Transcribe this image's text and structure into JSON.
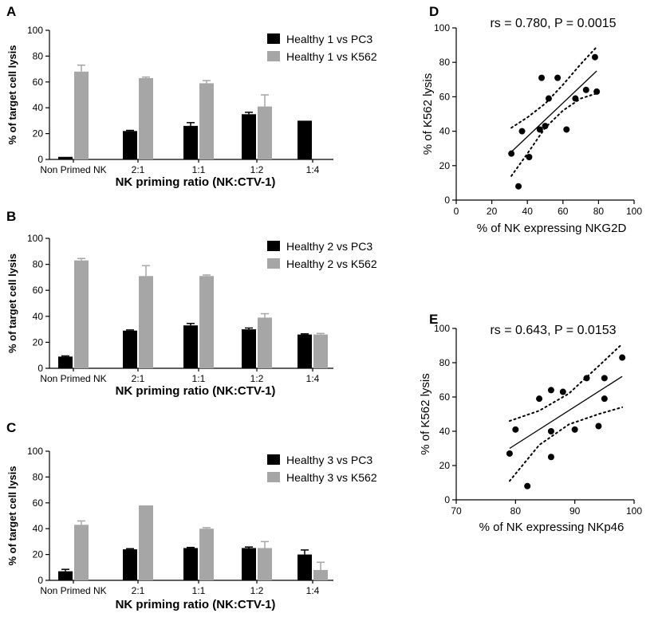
{
  "colors": {
    "series1": "#000000",
    "series2": "#a6a6a6",
    "axis": "#000000",
    "fit": "#000000"
  },
  "chart_data": [
    {
      "panel": "A",
      "type": "bar",
      "ylabel": "% of target cell lysis",
      "xlabel": "NK priming ratio (NK:CTV-1)",
      "ylim": [
        0,
        100
      ],
      "yticks": [
        0,
        20,
        40,
        60,
        80,
        100
      ],
      "categories": [
        "Non Primed NK",
        "2:1",
        "1:1",
        "1:2",
        "1:4"
      ],
      "series": [
        {
          "name": "Healthy 1 vs PC3",
          "values": [
            2,
            22,
            26,
            35,
            30
          ],
          "errors": [
            0,
            0.5,
            2.5,
            1.5,
            0
          ]
        },
        {
          "name": "Healthy 1 vs K562",
          "values": [
            68,
            63,
            59,
            41,
            null
          ],
          "errors": [
            5,
            0.8,
            2,
            9,
            0
          ]
        }
      ]
    },
    {
      "panel": "B",
      "type": "bar",
      "ylabel": "% of target cell lysis",
      "xlabel": "NK priming ratio (NK:CTV-1)",
      "ylim": [
        0,
        100
      ],
      "yticks": [
        0,
        20,
        40,
        60,
        80,
        100
      ],
      "categories": [
        "Non Primed NK",
        "2:1",
        "1:1",
        "1:2",
        "1:4"
      ],
      "series": [
        {
          "name": "Healthy 2 vs PC3",
          "values": [
            9,
            29,
            33,
            30,
            26
          ],
          "errors": [
            0.5,
            0.5,
            1.5,
            1,
            0.5
          ]
        },
        {
          "name": "Healthy 2 vs K562",
          "values": [
            83,
            71,
            71,
            39,
            26
          ],
          "errors": [
            1.5,
            8,
            0.8,
            3,
            0.8
          ]
        }
      ]
    },
    {
      "panel": "C",
      "type": "bar",
      "ylabel": "% of target cell lysis",
      "xlabel": "NK priming ratio (NK:CTV-1)",
      "ylim": [
        0,
        100
      ],
      "yticks": [
        0,
        20,
        40,
        60,
        80,
        100
      ],
      "categories": [
        "Non Primed NK",
        "2:1",
        "1:1",
        "1:2",
        "1:4"
      ],
      "series": [
        {
          "name": "Healthy 3 vs PC3",
          "values": [
            7,
            24,
            25,
            25,
            20
          ],
          "errors": [
            1.5,
            0.5,
            0.5,
            0.8,
            3.5
          ]
        },
        {
          "name": "Healthy 3 vs K562",
          "values": [
            43,
            58,
            40,
            25,
            8
          ],
          "errors": [
            3,
            0,
            0.8,
            5,
            6
          ]
        }
      ]
    },
    {
      "panel": "D",
      "type": "scatter",
      "xlabel": "% of NK expressing NKG2D",
      "ylabel": "% of K562 lysis",
      "annotation": "rs = 0.780, P = 0.0015",
      "xlim": [
        0,
        100
      ],
      "ylim": [
        0,
        100
      ],
      "xticks": [
        0,
        20,
        40,
        60,
        80,
        100
      ],
      "yticks": [
        0,
        20,
        40,
        60,
        80,
        100
      ],
      "x": [
        31,
        35,
        37,
        41,
        47,
        48,
        50,
        52,
        57,
        62,
        67,
        73,
        78,
        79
      ],
      "y": [
        27,
        8,
        40,
        25,
        41,
        71,
        43,
        59,
        71,
        41,
        59,
        64,
        83,
        63
      ],
      "fit_line": {
        "x": [
          31,
          79
        ],
        "y": [
          28,
          75
        ]
      },
      "ci_upper": {
        "x": [
          31,
          40,
          50,
          60,
          70,
          79
        ],
        "y": [
          42,
          48,
          56,
          67,
          79,
          89
        ]
      },
      "ci_lower": {
        "x": [
          31,
          40,
          50,
          60,
          70,
          79
        ],
        "y": [
          14,
          27,
          42,
          52,
          59,
          62
        ]
      }
    },
    {
      "panel": "E",
      "type": "scatter",
      "xlabel": "% of NK expressing NKp46",
      "ylabel": "% of K562 lysis",
      "annotation": "rs = 0.643, P = 0.0153",
      "xlim": [
        70,
        100
      ],
      "ylim": [
        0,
        100
      ],
      "xticks": [
        70,
        80,
        90,
        100
      ],
      "yticks": [
        0,
        20,
        40,
        60,
        80,
        100
      ],
      "x": [
        79,
        80,
        82,
        84,
        86,
        86,
        86,
        88,
        90,
        92,
        94,
        95,
        95,
        98
      ],
      "y": [
        27,
        41,
        8,
        59,
        64,
        40,
        25,
        63,
        41,
        71,
        43,
        59,
        71,
        83
      ],
      "fit_line": {
        "x": [
          79,
          98
        ],
        "y": [
          30,
          72
        ]
      },
      "ci_upper": {
        "x": [
          79,
          84,
          89,
          94,
          98
        ],
        "y": [
          46,
          52,
          62,
          78,
          91
        ]
      },
      "ci_lower": {
        "x": [
          79,
          84,
          89,
          94,
          98
        ],
        "y": [
          11,
          32,
          44,
          50,
          54
        ]
      }
    }
  ]
}
